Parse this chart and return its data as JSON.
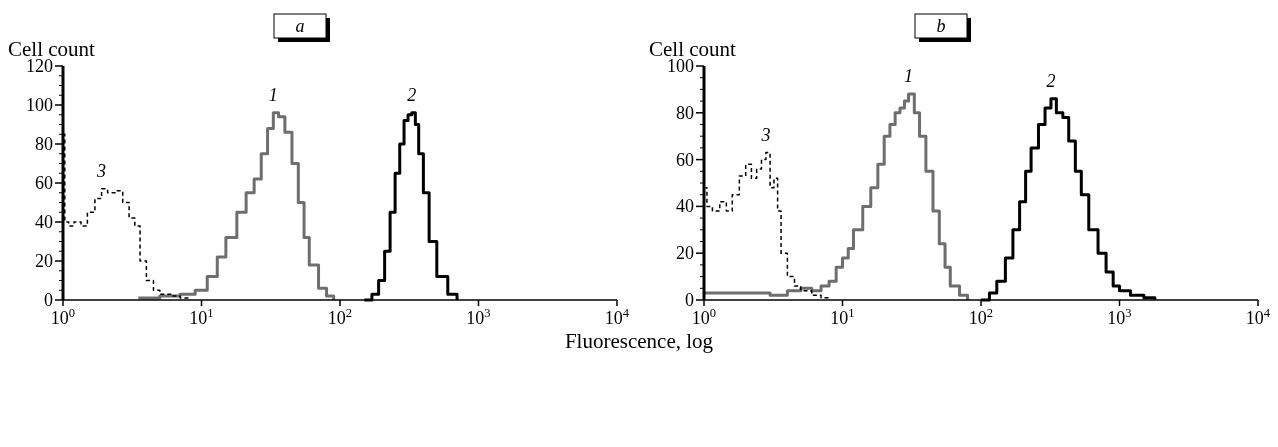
{
  "chart_data": [
    {
      "type": "step",
      "title": "a",
      "ylabel": "Cell count",
      "log": "x",
      "xlim": [
        1,
        10000
      ],
      "ylim": [
        0,
        120
      ],
      "xticks": [
        {
          "value": 1,
          "label": "10$^{0}$"
        },
        {
          "value": 10,
          "label": "10$^{1}$"
        },
        {
          "value": 100,
          "label": "10$^{2}$"
        },
        {
          "value": 1000,
          "label": "10$^{3}$"
        },
        {
          "value": 10000,
          "label": "10$^{4}$"
        }
      ],
      "yticks": [
        0,
        20,
        40,
        60,
        80,
        100,
        120
      ],
      "grid": false,
      "series": [
        {
          "name": "1",
          "color": "#6e6e6e",
          "line_style": "solid",
          "x": [
            3.5,
            5,
            7,
            9,
            11,
            13,
            15,
            18,
            21,
            24,
            27,
            30,
            33,
            36,
            40,
            45,
            50,
            55,
            60,
            70,
            80,
            90
          ],
          "values": [
            1,
            2,
            3,
            5,
            12,
            22,
            32,
            45,
            55,
            62,
            75,
            88,
            96,
            94,
            86,
            70,
            50,
            32,
            18,
            6,
            2,
            0
          ]
        },
        {
          "name": "2",
          "color": "#000000",
          "line_style": "solid",
          "x": [
            150,
            170,
            190,
            210,
            230,
            250,
            270,
            290,
            310,
            330,
            350,
            370,
            400,
            440,
            500,
            600,
            700
          ],
          "values": [
            0,
            3,
            10,
            25,
            45,
            65,
            80,
            92,
            95,
            96,
            90,
            75,
            55,
            30,
            12,
            3,
            0
          ]
        },
        {
          "name": "3",
          "color": "#000000",
          "line_style": "dashed",
          "x": [
            1,
            1.03,
            1.1,
            1.2,
            1.35,
            1.5,
            1.7,
            1.9,
            2.1,
            2.4,
            2.7,
            3,
            3.3,
            3.6,
            4,
            4.5,
            5,
            6,
            7,
            8
          ],
          "values": [
            85,
            40,
            38,
            40,
            38,
            45,
            52,
            57,
            55,
            56,
            50,
            42,
            38,
            20,
            10,
            5,
            3,
            2,
            1,
            0
          ]
        }
      ]
    },
    {
      "type": "step",
      "title": "b",
      "ylabel": "Cell count",
      "xlabel": "Fluorescence, log",
      "log": "x",
      "xlim": [
        1,
        10000
      ],
      "ylim": [
        0,
        100
      ],
      "xticks": [
        {
          "value": 1,
          "label": "10$^{0}$"
        },
        {
          "value": 10,
          "label": "10$^{1}$"
        },
        {
          "value": 100,
          "label": "10$^{2}$"
        },
        {
          "value": 1000,
          "label": "10$^{3}$"
        },
        {
          "value": 10000,
          "label": "10$^{4}$"
        }
      ],
      "yticks": [
        0,
        20,
        40,
        60,
        80,
        100
      ],
      "grid": false,
      "series": [
        {
          "name": "1",
          "color": "#6e6e6e",
          "line_style": "solid",
          "x": [
            1,
            2,
            3,
            4,
            5,
            6,
            7,
            8,
            9,
            10,
            11,
            12,
            14,
            16,
            18,
            20,
            22,
            24,
            26,
            28,
            30,
            33,
            36,
            40,
            45,
            50,
            55,
            60,
            70,
            80
          ],
          "values": [
            3,
            3,
            2,
            4,
            5,
            4,
            6,
            8,
            14,
            18,
            22,
            30,
            40,
            48,
            58,
            70,
            75,
            80,
            82,
            85,
            88,
            80,
            70,
            55,
            38,
            24,
            14,
            6,
            2,
            0
          ]
        },
        {
          "name": "2",
          "color": "#000000",
          "line_style": "solid",
          "x": [
            100,
            115,
            130,
            150,
            170,
            190,
            210,
            230,
            260,
            290,
            320,
            350,
            390,
            430,
            480,
            530,
            600,
            700,
            800,
            900,
            1000,
            1200,
            1500,
            1800
          ],
          "values": [
            0,
            3,
            8,
            18,
            30,
            42,
            55,
            65,
            75,
            82,
            86,
            80,
            78,
            68,
            55,
            45,
            30,
            20,
            12,
            6,
            4,
            2,
            1,
            0
          ]
        },
        {
          "name": "3",
          "color": "#000000",
          "line_style": "dashed",
          "x": [
            1,
            1.05,
            1.15,
            1.3,
            1.45,
            1.6,
            1.8,
            2,
            2.2,
            2.4,
            2.6,
            2.8,
            3,
            3.2,
            3.4,
            3.6,
            4,
            4.5,
            5,
            6,
            7,
            8
          ],
          "values": [
            48,
            40,
            38,
            42,
            38,
            45,
            53,
            58,
            52,
            56,
            60,
            63,
            48,
            52,
            38,
            20,
            10,
            6,
            4,
            2,
            1,
            0
          ]
        }
      ]
    }
  ]
}
